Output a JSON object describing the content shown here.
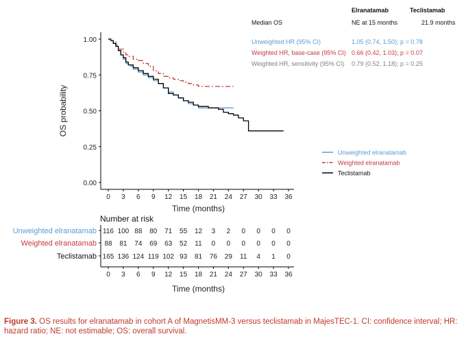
{
  "colors": {
    "unweighted": "#5b9bd5",
    "weighted": "#c8383f",
    "teclistamab": "#000000",
    "sensitivity": "#808080"
  },
  "chart_data": {
    "type": "line",
    "title": "",
    "xlabel": "Time (months)",
    "ylabel": "OS probability",
    "xlim": [
      0,
      36
    ],
    "ylim": [
      0,
      1
    ],
    "xticks": [
      "0",
      "3",
      "6",
      "9",
      "12",
      "15",
      "18",
      "21",
      "24",
      "27",
      "30",
      "33",
      "36"
    ],
    "yticks": [
      "0.00",
      "0.25",
      "0.50",
      "0.75",
      "1.00"
    ],
    "grid": false,
    "legend_position": "right",
    "series": [
      {
        "name": "Unweighted elranatamab",
        "step": true,
        "points": [
          [
            0,
            1.0
          ],
          [
            0.5,
            0.99
          ],
          [
            1,
            0.97
          ],
          [
            1.5,
            0.95
          ],
          [
            2,
            0.92
          ],
          [
            2.5,
            0.89
          ],
          [
            3,
            0.86
          ],
          [
            3.5,
            0.83
          ],
          [
            4,
            0.82
          ],
          [
            4.5,
            0.81
          ],
          [
            5,
            0.79
          ],
          [
            6,
            0.77
          ],
          [
            7,
            0.75
          ],
          [
            8,
            0.73
          ],
          [
            9,
            0.71
          ],
          [
            10,
            0.69
          ],
          [
            11,
            0.66
          ],
          [
            12,
            0.63
          ],
          [
            13,
            0.61
          ],
          [
            14,
            0.59
          ],
          [
            15,
            0.57
          ],
          [
            16,
            0.55
          ],
          [
            17,
            0.54
          ],
          [
            18,
            0.52
          ],
          [
            25,
            0.52
          ]
        ]
      },
      {
        "name": "Weighted elranatamab",
        "step": true,
        "points": [
          [
            0,
            1.0
          ],
          [
            0.5,
            0.99
          ],
          [
            1,
            0.98
          ],
          [
            1.5,
            0.96
          ],
          [
            2,
            0.93
          ],
          [
            3,
            0.91
          ],
          [
            3.5,
            0.89
          ],
          [
            4,
            0.88
          ],
          [
            5,
            0.86
          ],
          [
            6,
            0.85
          ],
          [
            7,
            0.83
          ],
          [
            8,
            0.81
          ],
          [
            9,
            0.78
          ],
          [
            10,
            0.76
          ],
          [
            11,
            0.74
          ],
          [
            12,
            0.73
          ],
          [
            13,
            0.72
          ],
          [
            14,
            0.71
          ],
          [
            15,
            0.7
          ],
          [
            16,
            0.69
          ],
          [
            17,
            0.68
          ],
          [
            18,
            0.67
          ],
          [
            25,
            0.67
          ]
        ]
      },
      {
        "name": "Teclistamab",
        "step": true,
        "points": [
          [
            0,
            1.0
          ],
          [
            0.5,
            0.99
          ],
          [
            1,
            0.97
          ],
          [
            1.5,
            0.95
          ],
          [
            2,
            0.92
          ],
          [
            2.5,
            0.89
          ],
          [
            3,
            0.87
          ],
          [
            3.5,
            0.84
          ],
          [
            4,
            0.82
          ],
          [
            5,
            0.8
          ],
          [
            6,
            0.78
          ],
          [
            7,
            0.76
          ],
          [
            8,
            0.74
          ],
          [
            9,
            0.72
          ],
          [
            10,
            0.69
          ],
          [
            11,
            0.66
          ],
          [
            12,
            0.62
          ],
          [
            13,
            0.61
          ],
          [
            14,
            0.59
          ],
          [
            15,
            0.57
          ],
          [
            16,
            0.56
          ],
          [
            17,
            0.54
          ],
          [
            18,
            0.53
          ],
          [
            20,
            0.52
          ],
          [
            22,
            0.51
          ],
          [
            23,
            0.49
          ],
          [
            24,
            0.48
          ],
          [
            25,
            0.47
          ],
          [
            26,
            0.45
          ],
          [
            27,
            0.43
          ],
          [
            28,
            0.36
          ],
          [
            35,
            0.36
          ]
        ]
      }
    ],
    "legend": [
      {
        "label": "Unweighted elranatamab",
        "style": "solid",
        "color_key": "unweighted"
      },
      {
        "label": "Weighted elranatamab",
        "style": "dashdot",
        "color_key": "weighted"
      },
      {
        "label": "Teclistamab",
        "style": "solid",
        "color_key": "teclistamab"
      }
    ],
    "stats_table": {
      "headers": [
        "Elranatamab",
        "Teclistamab"
      ],
      "rows": [
        {
          "label": "Median OS",
          "values": [
            "NE at 15 months",
            "21.9 months"
          ],
          "color_key": "teclistamab"
        },
        {
          "label": "Unweighted HR (95% CI)",
          "values": [
            "1.05 (0.74, 1.50); p = 0.78"
          ],
          "color_key": "unweighted"
        },
        {
          "label": "Weighted HR, base-case (95% CI)",
          "values": [
            "0.66 (0.42, 1.03); p = 0.07"
          ],
          "color_key": "weighted"
        },
        {
          "label": "Weighted HR, sensitivity (95% CI)",
          "values": [
            "0.79 (0.52, 1.18); p = 0.25"
          ],
          "color_key": "sensitivity"
        }
      ]
    },
    "risk_table": {
      "title": "Number at risk",
      "xlabel": "Time (months)",
      "times": [
        "0",
        "3",
        "6",
        "9",
        "12",
        "15",
        "18",
        "21",
        "24",
        "27",
        "30",
        "33",
        "36"
      ],
      "rows": [
        {
          "label": "Unweighted elranatamab",
          "color_key": "unweighted",
          "values": [
            "116",
            "100",
            "88",
            "80",
            "71",
            "55",
            "12",
            "3",
            "2",
            "0",
            "0",
            "0",
            "0"
          ]
        },
        {
          "label": "Weighted elranatamab",
          "color_key": "weighted",
          "values": [
            "88",
            "81",
            "74",
            "69",
            "63",
            "52",
            "11",
            "0",
            "0",
            "0",
            "0",
            "0",
            "0"
          ]
        },
        {
          "label": "Teclistamab",
          "color_key": "teclistamab",
          "values": [
            "165",
            "136",
            "124",
            "119",
            "102",
            "93",
            "81",
            "76",
            "29",
            "11",
            "4",
            "1",
            "0"
          ]
        }
      ]
    }
  },
  "caption": {
    "figure_label": "Figure 3.",
    "text": " OS results for elranatamab in cohort A of MagnetisMM-3 versus teclistamab in MajesTEC-1. CI: confidence interval; HR: hazard ratio; NE: not estimable; OS: overall survival."
  }
}
